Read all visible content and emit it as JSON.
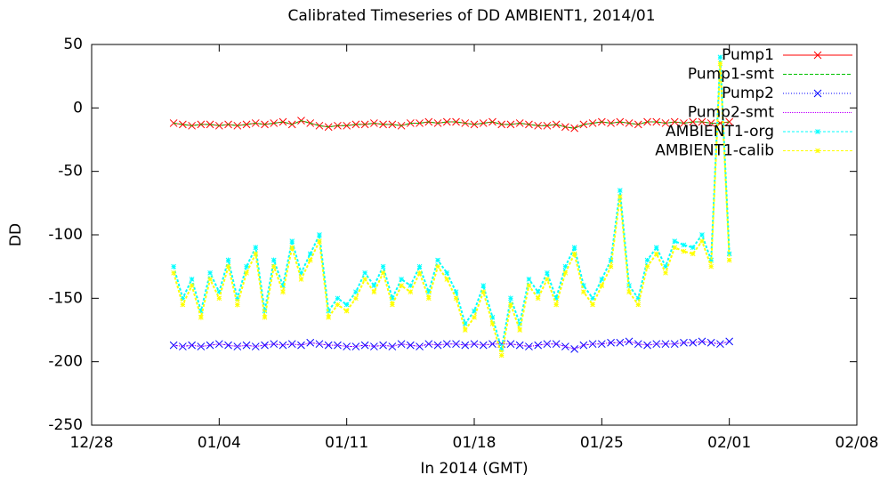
{
  "chart_data": {
    "type": "line",
    "title": "Calibrated Timeseries of DD AMBIENT1, 2014/01",
    "x_label": "In 2014 (GMT)",
    "y_label": "DD",
    "x": [
      4.5,
      5,
      5.5,
      6,
      6.5,
      7,
      7.5,
      8,
      8.5,
      9,
      9.5,
      10,
      10.5,
      11,
      11.5,
      12,
      12.5,
      13,
      13.5,
      14,
      14.5,
      15,
      15.5,
      16,
      16.5,
      17,
      17.5,
      18,
      18.5,
      19,
      19.5,
      20,
      20.5,
      21,
      21.5,
      22,
      22.5,
      23,
      23.5,
      24,
      24.5,
      25,
      25.5,
      26,
      26.5,
      27,
      27.5,
      28,
      28.5,
      29,
      29.5,
      30,
      30.5,
      31,
      31.5,
      32,
      32.5,
      33,
      33.5,
      34,
      34.5,
      35
    ],
    "xlim": [
      0,
      42
    ],
    "xticks": [
      {
        "value": 0,
        "label": "12/28"
      },
      {
        "value": 7,
        "label": "01/04"
      },
      {
        "value": 14,
        "label": "01/11"
      },
      {
        "value": 21,
        "label": "01/18"
      },
      {
        "value": 28,
        "label": "01/25"
      },
      {
        "value": 35,
        "label": "02/01"
      },
      {
        "value": 42,
        "label": "02/08"
      }
    ],
    "ylim": [
      -250,
      50
    ],
    "yticks": [
      -250,
      -200,
      -150,
      -100,
      -50,
      0,
      50
    ],
    "legend": "top-right",
    "series": [
      {
        "name": "Pump1",
        "color": "#ff0000",
        "marker": "x",
        "dash": "none",
        "values": [
          -12,
          -13,
          -14,
          -13,
          -13,
          -14,
          -13,
          -14,
          -13,
          -12,
          -13,
          -12,
          -11,
          -13,
          -10,
          -12,
          -14,
          -15,
          -14,
          -14,
          -13,
          -13,
          -12,
          -13,
          -13,
          -14,
          -12,
          -12,
          -11,
          -12,
          -11,
          -11,
          -12,
          -13,
          -12,
          -11,
          -13,
          -13,
          -12,
          -13,
          -14,
          -14,
          -13,
          -15,
          -16,
          -13,
          -12,
          -11,
          -12,
          -11,
          -12,
          -13,
          -11,
          -11,
          -12,
          -11,
          -12,
          -11,
          -11,
          -12,
          -12,
          -11
        ]
      },
      {
        "name": "Pump1-smt",
        "color": "#00c000",
        "marker": "none",
        "dash": "4 2",
        "values": [
          -12,
          -13,
          -14,
          -13,
          -13,
          -14,
          -13,
          -14,
          -13,
          -12,
          -13,
          -12,
          -11,
          -13,
          -10,
          -12,
          -14,
          -15,
          -14,
          -14,
          -13,
          -13,
          -12,
          -13,
          -13,
          -14,
          -12,
          -12,
          -11,
          -12,
          -11,
          -11,
          -12,
          -13,
          -12,
          -11,
          -13,
          -13,
          -12,
          -13,
          -14,
          -14,
          -13,
          -15,
          -16,
          -13,
          -12,
          -11,
          -12,
          -11,
          -12,
          -13,
          -11,
          -11,
          -12,
          -11,
          -12,
          -11,
          -11,
          -12,
          -12,
          -11
        ]
      },
      {
        "name": "Pump2",
        "color": "#0000ff",
        "marker": "x",
        "dash": "1 2",
        "values": [
          -187,
          -188,
          -187,
          -188,
          -187,
          -186,
          -187,
          -188,
          -187,
          -188,
          -187,
          -186,
          -187,
          -186,
          -187,
          -185,
          -186,
          -187,
          -187,
          -188,
          -188,
          -187,
          -188,
          -187,
          -188,
          -186,
          -187,
          -188,
          -186,
          -187,
          -186,
          -186,
          -187,
          -186,
          -187,
          -186,
          -186,
          -186,
          -187,
          -188,
          -187,
          -186,
          -186,
          -188,
          -190,
          -187,
          -186,
          -186,
          -185,
          -185,
          -184,
          -186,
          -187,
          -186,
          -186,
          -186,
          -185,
          -185,
          -184,
          -185,
          -186,
          -184
        ]
      },
      {
        "name": "Pump2-smt",
        "color": "#c000ff",
        "marker": "none",
        "dash": "1 1",
        "values": [
          -187,
          -188,
          -187,
          -188,
          -187,
          -186,
          -187,
          -188,
          -187,
          -188,
          -187,
          -186,
          -187,
          -186,
          -187,
          -185,
          -186,
          -187,
          -187,
          -188,
          -188,
          -187,
          -188,
          -187,
          -188,
          -186,
          -187,
          -188,
          -186,
          -187,
          -186,
          -186,
          -187,
          -186,
          -187,
          -186,
          -186,
          -186,
          -187,
          -188,
          -187,
          -186,
          -186,
          -188,
          -190,
          -187,
          -186,
          -186,
          -185,
          -185,
          -184,
          -186,
          -187,
          -186,
          -186,
          -186,
          -185,
          -185,
          -184,
          -185,
          -186,
          -184
        ]
      },
      {
        "name": "AMBIENT1-org",
        "color": "#00ffff",
        "marker": "star",
        "dash": "3 2",
        "values": [
          -125,
          -150,
          -135,
          -160,
          -130,
          -145,
          -120,
          -150,
          -125,
          -110,
          -160,
          -120,
          -140,
          -105,
          -130,
          -115,
          -100,
          -160,
          -150,
          -155,
          -145,
          -130,
          -140,
          -125,
          -150,
          -135,
          -140,
          -125,
          -145,
          -120,
          -130,
          -145,
          -170,
          -160,
          -140,
          -165,
          -190,
          -150,
          -170,
          -135,
          -145,
          -130,
          -150,
          -125,
          -110,
          -140,
          -150,
          -135,
          -120,
          -65,
          -140,
          -150,
          -120,
          -110,
          -125,
          -105,
          -108,
          -110,
          -100,
          -120,
          40,
          -115
        ]
      },
      {
        "name": "AMBIENT1-calib",
        "color": "#ffff00",
        "marker": "star",
        "dash": "3 2",
        "values": [
          -130,
          -155,
          -140,
          -165,
          -135,
          -150,
          -125,
          -155,
          -130,
          -115,
          -165,
          -125,
          -145,
          -110,
          -135,
          -120,
          -105,
          -165,
          -155,
          -160,
          -150,
          -135,
          -145,
          -130,
          -155,
          -140,
          -145,
          -130,
          -150,
          -125,
          -135,
          -150,
          -175,
          -165,
          -145,
          -170,
          -195,
          -155,
          -175,
          -140,
          -150,
          -135,
          -155,
          -130,
          -115,
          -145,
          -155,
          -140,
          -125,
          -70,
          -145,
          -155,
          -125,
          -115,
          -130,
          -110,
          -113,
          -115,
          -105,
          -125,
          35,
          -120
        ]
      }
    ]
  }
}
